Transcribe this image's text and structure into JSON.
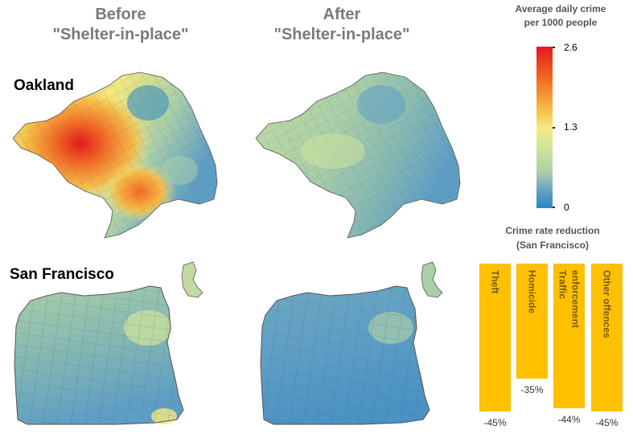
{
  "headers": {
    "before_line1": "Before",
    "before_line2": "\"Shelter-in-place\"",
    "after_line1": "After",
    "after_line2": "\"Shelter-in-place\""
  },
  "cities": {
    "oakland": "Oakland",
    "san_francisco": "San Francisco"
  },
  "legend": {
    "title_line1": "Average daily crime",
    "title_line2": "per 1000 people",
    "ticks": [
      "2.6",
      "1.3",
      "0"
    ],
    "colors": {
      "high": "#e4191c",
      "mid": "#f5ea80",
      "low": "#2e86c1"
    }
  },
  "chart_data": {
    "type": "bar",
    "title": "Crime rate reduction",
    "subtitle": "(San Francisco)",
    "categories": [
      "Theft",
      "Homicide",
      "Traffic enforcement",
      "Other offences"
    ],
    "category_lines": [
      [
        "Theft"
      ],
      [
        "Homicide"
      ],
      [
        "Traffic",
        "enforcement"
      ],
      [
        "Other offences"
      ]
    ],
    "values": [
      -45,
      -35,
      -44,
      -45
    ],
    "labels": [
      "-45%",
      "-35%",
      "-44%",
      "-45%"
    ],
    "ylim": [
      -45,
      0
    ],
    "bar_color": "#ffc000",
    "label_color": "#7a5a10"
  }
}
